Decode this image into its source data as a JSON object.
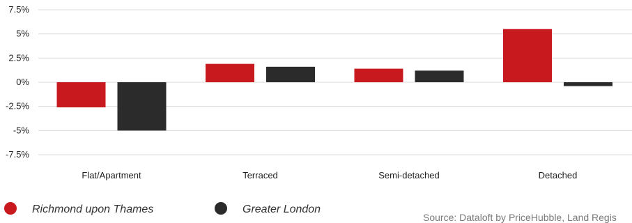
{
  "chart_data": {
    "type": "bar",
    "title": "",
    "xlabel": "",
    "ylabel": "",
    "categories": [
      "Flat/Apartment",
      "Terraced",
      "Semi-detached",
      "Detached"
    ],
    "series": [
      {
        "name": "Richmond upon Thames",
        "color": "#c8191f",
        "values": [
          -2.6,
          1.9,
          1.4,
          5.5
        ]
      },
      {
        "name": "Greater London",
        "color": "#2b2b2b",
        "values": [
          -5.0,
          1.6,
          1.2,
          -0.4
        ]
      }
    ],
    "ylim": [
      -7.5,
      7.5
    ],
    "yticks": [
      7.5,
      5,
      2.5,
      0,
      -2.5,
      -5,
      -7.5
    ],
    "ytick_labels": [
      "7.5%",
      "5%",
      "2.5%",
      "0%",
      "-2.5%",
      "-5%",
      "-7.5%"
    ],
    "grid": true,
    "legend_position": "bottom-left",
    "source": "Source: Dataloft by PriceHubble, Land Regis"
  }
}
